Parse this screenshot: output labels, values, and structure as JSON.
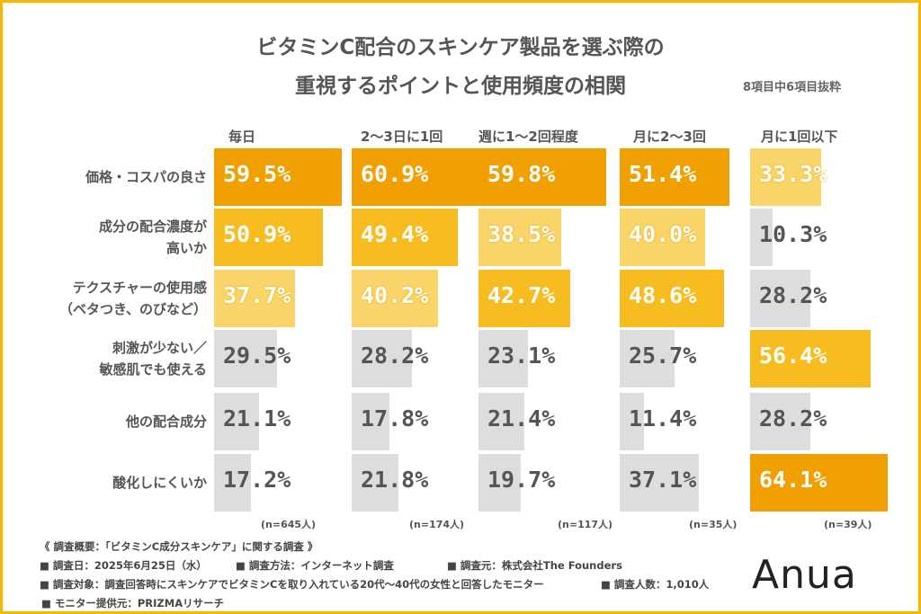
{
  "chart_data": {
    "type": "bar",
    "title_line1": "ビタミンC配合のスキンケア製品を選ぶ際の",
    "title_line2": "重視するポイントと使用頻度の相関",
    "subtitle": "8項目中6項目抜粋",
    "categories": [
      "価格・コスパの良さ",
      "成分の配合濃度が\n高いか",
      "テクスチャーの使用感\n（ベタつき、のびなど）",
      "刺激が少ない／\n敏感肌でも使える",
      "他の配合成分",
      "酸化しにくいか"
    ],
    "series": [
      {
        "name": "毎日",
        "n": "(n=645人)",
        "values": [
          59.5,
          50.9,
          37.7,
          29.5,
          21.1,
          17.2
        ],
        "rank": [
          1,
          2,
          3,
          0,
          0,
          0
        ]
      },
      {
        "name": "2〜3日に1回",
        "n": "(n=174人)",
        "values": [
          60.9,
          49.4,
          40.2,
          28.2,
          17.8,
          21.8
        ],
        "rank": [
          1,
          2,
          3,
          0,
          0,
          0
        ]
      },
      {
        "name": "週に1〜2回程度",
        "n": "(n=117人)",
        "values": [
          59.8,
          38.5,
          42.7,
          23.1,
          21.4,
          19.7
        ],
        "rank": [
          1,
          3,
          2,
          0,
          0,
          0
        ]
      },
      {
        "name": "月に2〜3回",
        "n": "(n=35人)",
        "values": [
          51.4,
          40.0,
          48.6,
          25.7,
          11.4,
          37.1
        ],
        "rank": [
          1,
          3,
          2,
          0,
          0,
          0
        ]
      },
      {
        "name": "月に1回以下",
        "n": "(n=39人)",
        "values": [
          33.3,
          10.3,
          28.2,
          56.4,
          28.2,
          64.1
        ],
        "rank": [
          3,
          0,
          0,
          2,
          0,
          1
        ]
      }
    ],
    "value_format": "%",
    "colors": {
      "rank1": "#F0A000",
      "rank2": "#F7BC1F",
      "rank3": "#F9D469",
      "other": "#DDDDDD",
      "frame": "#F5B800"
    }
  },
  "footer": {
    "heading": "《 調査概要：「ビタミンC成分スキンケア」に関する調査 》",
    "date": "■ 調査日：2025年6月25日（水）",
    "method": "■ 調査方法：インターネット調査",
    "source": "■ 調査元：株式会社The Founders",
    "target": "■ 調査対象：調査回答時にスキンケアでビタミンCを取り入れている20代〜40代の女性と回答したモニター",
    "count": "■ 調査人数：1,010人",
    "provider": "■ モニター提供元：PRIZMAリサーチ"
  },
  "logo": "Anua"
}
